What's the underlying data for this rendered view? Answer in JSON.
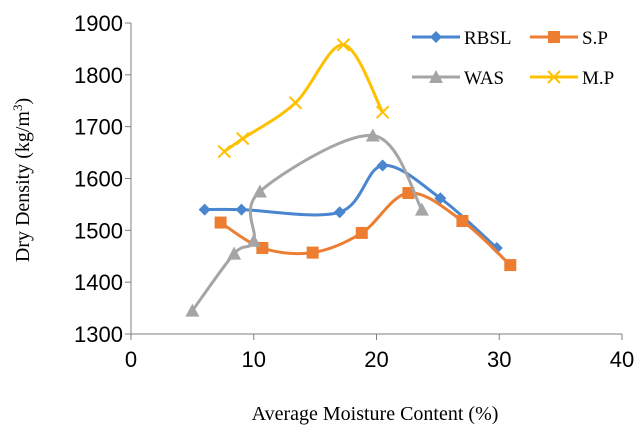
{
  "chart_data": {
    "type": "scatter",
    "xlabel": "Average Moisture Content (%)",
    "ylabel": {
      "main": "Dry Density (kg/m",
      "sup": "3",
      "close": ")"
    },
    "xlim": [
      0,
      40
    ],
    "ylim": [
      1300,
      1900
    ],
    "xticks": [
      0,
      10,
      20,
      30,
      40
    ],
    "yticks": [
      1300,
      1400,
      1500,
      1600,
      1700,
      1800,
      1900
    ],
    "grid": false,
    "legend": "top-right",
    "series": [
      {
        "name": "RBSL",
        "color": "#4a86cf",
        "marker": "diamond",
        "x": [
          6.0,
          9.0,
          17.0,
          20.5,
          25.2,
          29.8
        ],
        "y": [
          1540,
          1540,
          1535,
          1625,
          1562,
          1466
        ]
      },
      {
        "name": "S.P",
        "color": "#ed7d31",
        "marker": "square",
        "x": [
          7.3,
          10.7,
          14.8,
          18.8,
          22.6,
          27.0,
          30.9
        ],
        "y": [
          1515,
          1466,
          1457,
          1495,
          1572,
          1518,
          1433
        ]
      },
      {
        "name": "WAS",
        "color": "#a5a5a5",
        "marker": "triangle",
        "x": [
          5.0,
          8.4,
          10.0,
          10.5,
          19.7,
          23.7
        ],
        "y": [
          1345,
          1455,
          1480,
          1575,
          1683,
          1540
        ]
      },
      {
        "name": "M.P",
        "color": "#ffc000",
        "marker": "x",
        "x": [
          7.6,
          9.1,
          13.4,
          17.3,
          20.5
        ],
        "y": [
          1652,
          1677,
          1746,
          1858,
          1728
        ]
      }
    ]
  }
}
